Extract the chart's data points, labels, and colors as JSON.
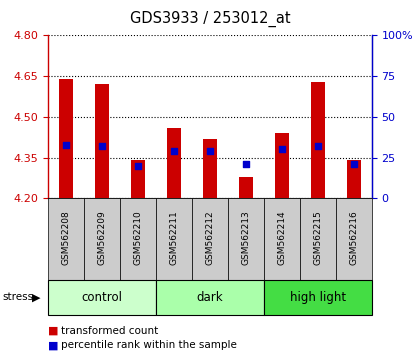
{
  "title": "GDS3933 / 253012_at",
  "samples": [
    "GSM562208",
    "GSM562209",
    "GSM562210",
    "GSM562211",
    "GSM562212",
    "GSM562213",
    "GSM562214",
    "GSM562215",
    "GSM562216"
  ],
  "bar_values": [
    4.64,
    4.62,
    4.34,
    4.46,
    4.42,
    4.28,
    4.44,
    4.63,
    4.34
  ],
  "percentile_values": [
    33,
    32,
    20,
    29,
    29,
    21,
    30,
    32,
    21
  ],
  "ymin": 4.2,
  "ymax": 4.8,
  "y_ticks": [
    4.2,
    4.35,
    4.5,
    4.65,
    4.8
  ],
  "y2min": 0,
  "y2max": 100,
  "y2_ticks": [
    0,
    25,
    50,
    75,
    100
  ],
  "bar_color": "#cc0000",
  "dot_color": "#0000cc",
  "groups": [
    {
      "label": "control",
      "indices": [
        0,
        1,
        2
      ],
      "color": "#ccffcc"
    },
    {
      "label": "dark",
      "indices": [
        3,
        4,
        5
      ],
      "color": "#aaffaa"
    },
    {
      "label": "high light",
      "indices": [
        6,
        7,
        8
      ],
      "color": "#44dd44"
    }
  ],
  "stress_label": "stress",
  "tick_label_color_left": "#cc0000",
  "tick_label_color_right": "#0000cc",
  "legend_items": [
    "transformed count",
    "percentile rank within the sample"
  ],
  "bar_width": 0.4
}
